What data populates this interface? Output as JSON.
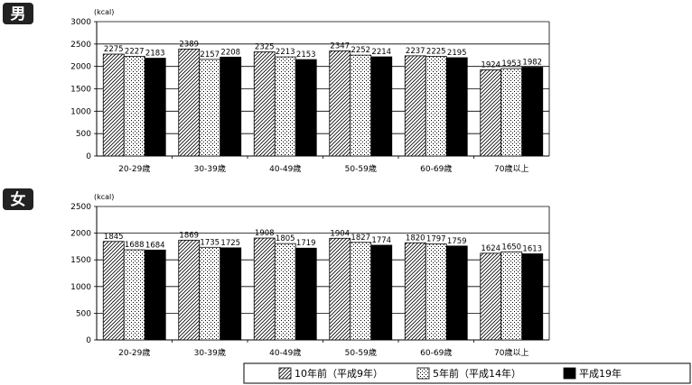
{
  "charts": {
    "male_badge": "男",
    "female_badge": "女"
  },
  "chart_data": [
    {
      "type": "bar",
      "panel": "男",
      "ylabel": "(kcal)",
      "ylim": [
        0,
        3000
      ],
      "yticks": [
        0,
        500,
        1000,
        1500,
        2000,
        2500,
        3000
      ],
      "categories": [
        "20-29歳",
        "30-39歳",
        "40-49歳",
        "50-59歳",
        "60-69歳",
        "70歳以上"
      ],
      "series": [
        {
          "name": "10年前（平成9年）",
          "values": [
            2275,
            2389,
            2325,
            2347,
            2237,
            1924
          ]
        },
        {
          "name": "5年前（平成14年）",
          "values": [
            2227,
            2157,
            2213,
            2252,
            2225,
            1953
          ]
        },
        {
          "name": "平成19年",
          "values": [
            2183,
            2208,
            2153,
            2214,
            2195,
            1982
          ]
        }
      ],
      "grid": true
    },
    {
      "type": "bar",
      "panel": "女",
      "ylabel": "(kcal)",
      "ylim": [
        0,
        2500
      ],
      "yticks": [
        0,
        500,
        1000,
        1500,
        2000,
        2500
      ],
      "categories": [
        "20-29歳",
        "30-39歳",
        "40-49歳",
        "50-59歳",
        "60-69歳",
        "70歳以上"
      ],
      "series": [
        {
          "name": "10年前（平成9年）",
          "values": [
            1845,
            1869,
            1908,
            1904,
            1820,
            1624
          ]
        },
        {
          "name": "5年前（平成14年）",
          "values": [
            1688,
            1735,
            1805,
            1827,
            1797,
            1650
          ]
        },
        {
          "name": "平成19年",
          "values": [
            1684,
            1725,
            1719,
            1774,
            1759,
            1613
          ]
        }
      ],
      "grid": true
    }
  ],
  "legend": {
    "placement": "bottom-right",
    "items": [
      {
        "label": "10年前（平成9年）",
        "pattern": "diagonal-hatch"
      },
      {
        "label": "5年前（平成14年）",
        "pattern": "dots"
      },
      {
        "label": "平成19年",
        "pattern": "solid-black"
      }
    ]
  },
  "colors": {
    "bar_outline": "#000000",
    "solid_bar": "#000000",
    "badge_bg": "#222222",
    "badge_text": "#ffffff",
    "grid": "#000000"
  }
}
